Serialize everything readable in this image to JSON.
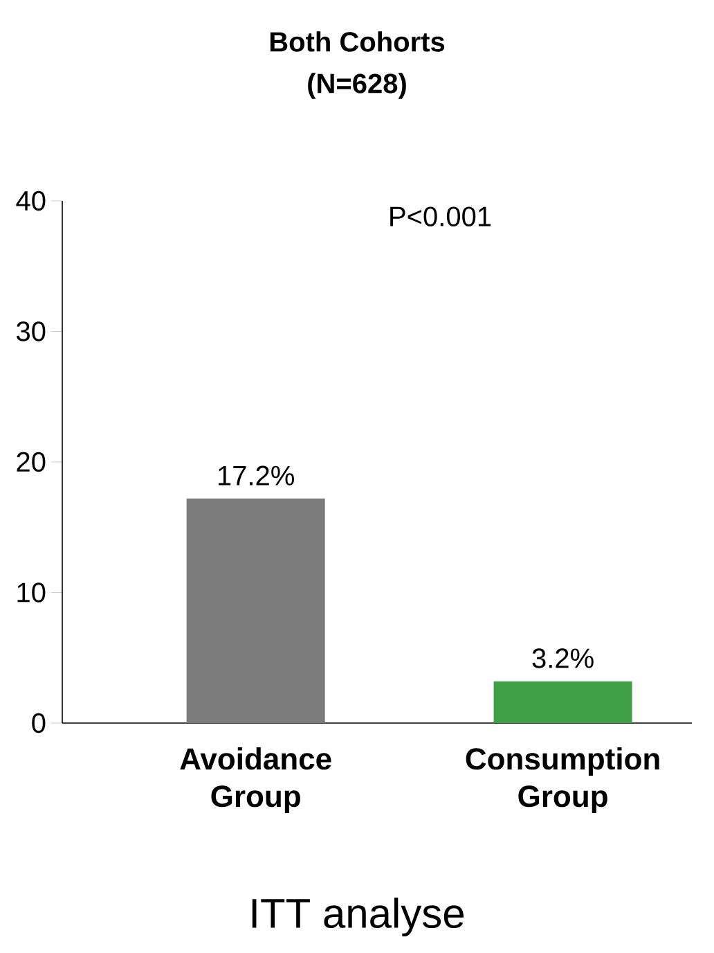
{
  "chart_data": {
    "type": "bar",
    "title": "Both Cohorts",
    "subtitle": "(N=628)",
    "categories": [
      "Avoidance Group",
      "Consumption Group"
    ],
    "values": [
      17.2,
      3.2
    ],
    "colors": [
      "#7b7b7b",
      "#3f9f47"
    ],
    "value_labels": [
      "17.2%",
      "3.2%"
    ],
    "ylim": [
      0,
      40
    ],
    "yticks": [
      0,
      10,
      20,
      30,
      40
    ],
    "annotations": [
      "P<0.001",
      "ITT analyse"
    ]
  }
}
